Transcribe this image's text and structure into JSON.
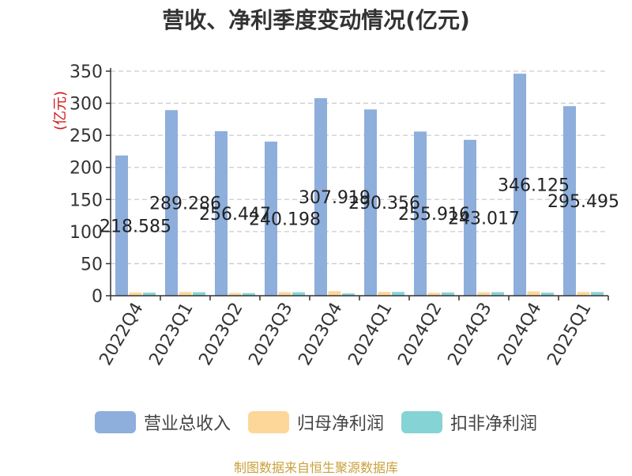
{
  "source_note": "制图数据来自恒生聚源数据库",
  "chart_data": {
    "type": "bar",
    "title": "营收、净利季度变动情况(亿元)",
    "ylabel": "(亿元)",
    "ylim": [
      0,
      350
    ],
    "yticks": [
      0,
      50,
      100,
      150,
      200,
      250,
      300,
      350
    ],
    "grid": true,
    "legend_position": "bottom",
    "categories": [
      "2022Q4",
      "2023Q1",
      "2023Q2",
      "2023Q3",
      "2023Q4",
      "2024Q1",
      "2024Q2",
      "2024Q3",
      "2024Q4",
      "2025Q1"
    ],
    "series": [
      {
        "name": "营业总收入",
        "color": "#8eaedc",
        "values": [
          218.585,
          289.286,
          256.447,
          240.198,
          307.919,
          290.356,
          255.916,
          243.017,
          346.125,
          295.495
        ],
        "labels": [
          "218.585",
          "289.286",
          "256.447",
          "240.198",
          "307.919",
          "290.356",
          "255.916",
          "243.017",
          "346.125",
          "295.495"
        ]
      },
      {
        "name": "归母净利润",
        "color": "#fdd79a",
        "values": [
          5.2,
          5.8,
          4.3,
          5.6,
          7.2,
          6.1,
          4.6,
          5.4,
          6.8,
          5.9
        ]
      },
      {
        "name": "扣非净利润",
        "color": "#86d3d6",
        "values": [
          4.8,
          5.5,
          4.1,
          5.4,
          3.6,
          5.9,
          5.2,
          5.6,
          4.8,
          5.7
        ]
      }
    ]
  }
}
